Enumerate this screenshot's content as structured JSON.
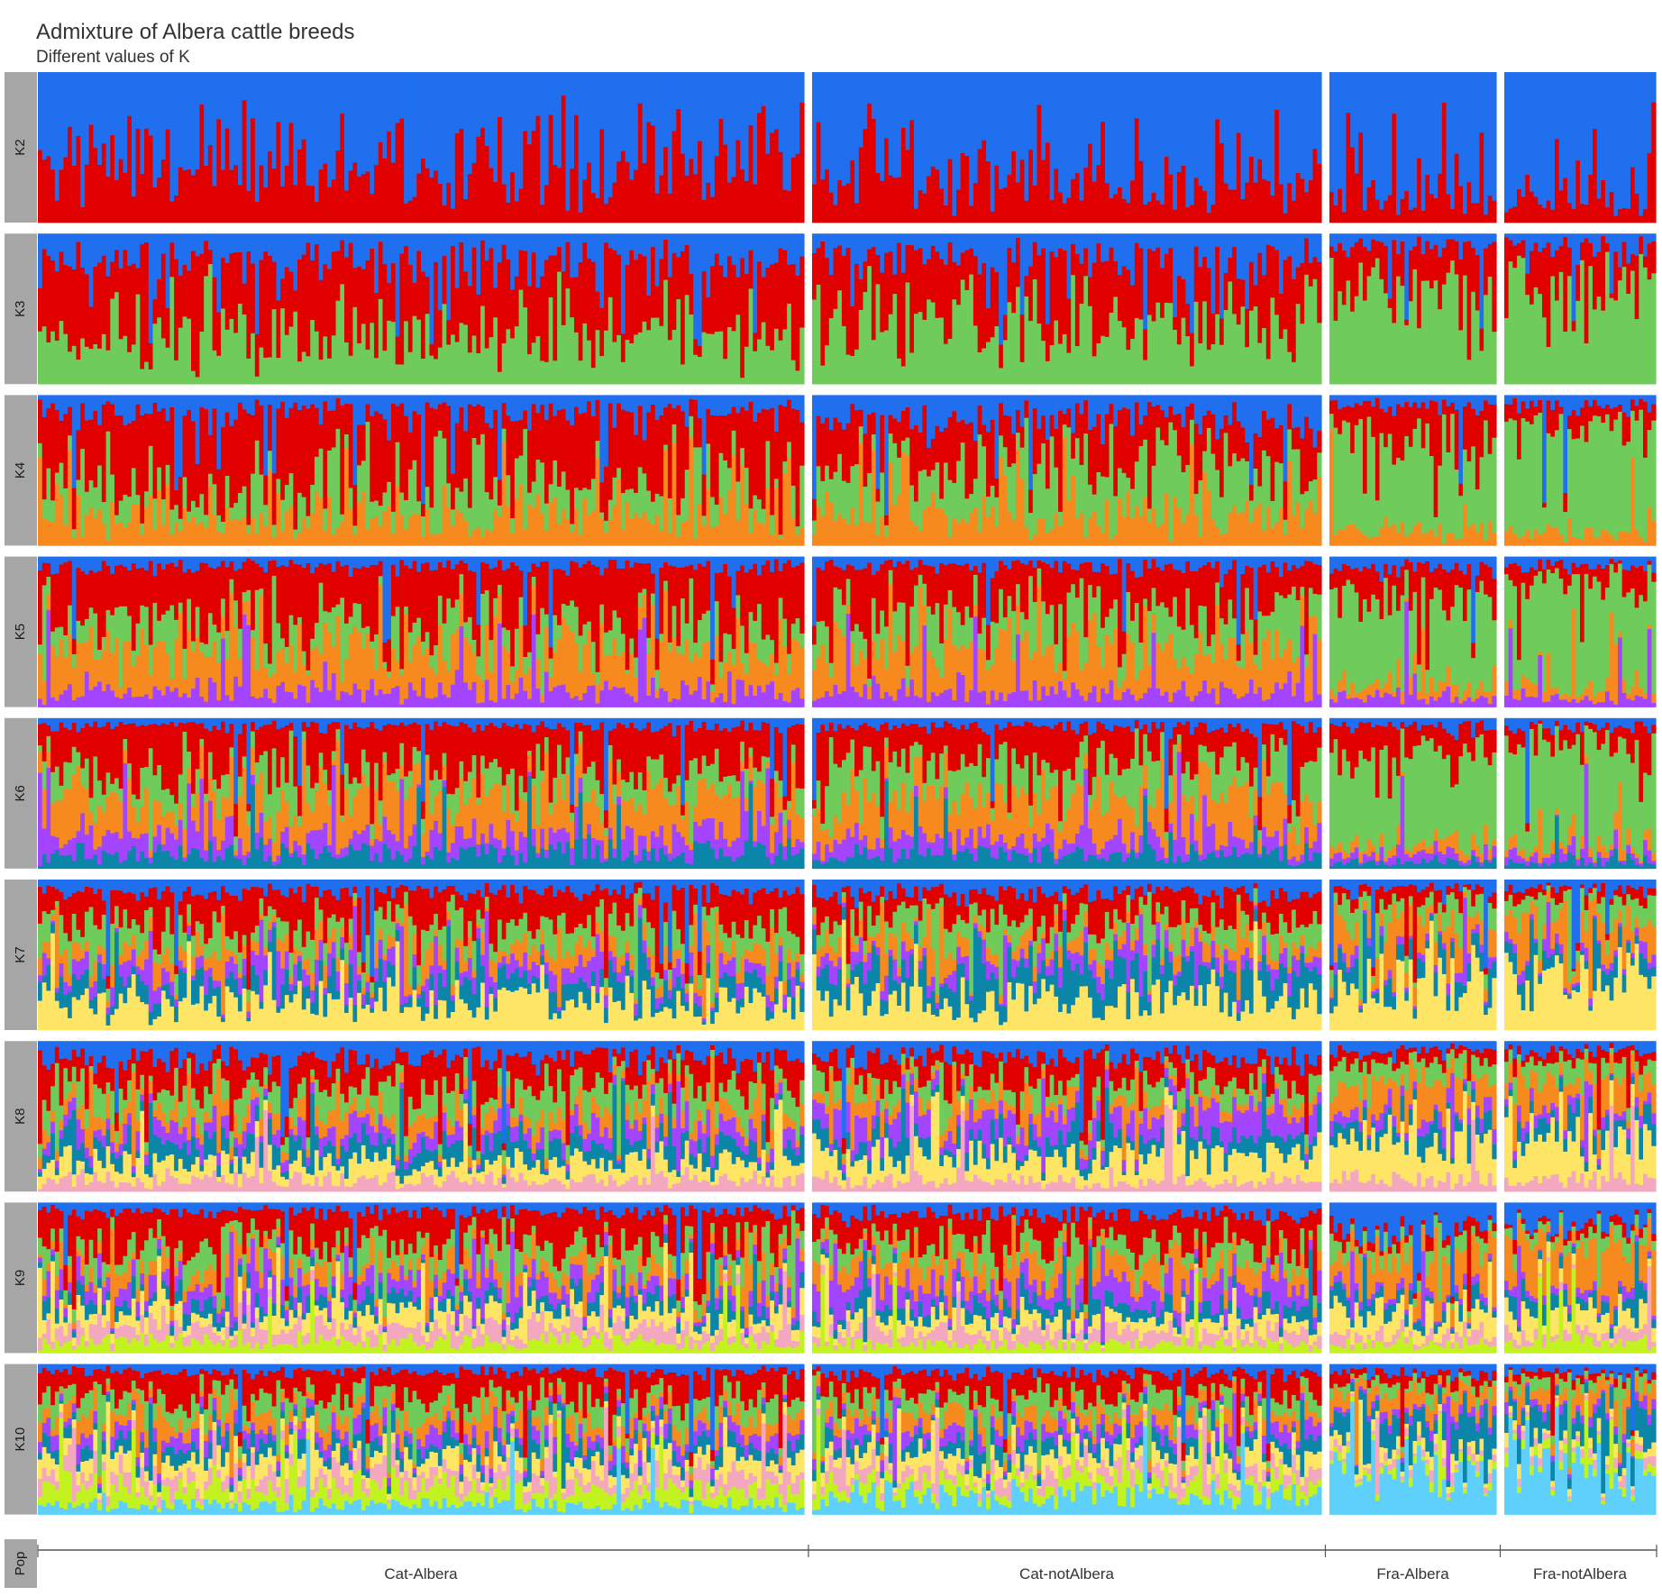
{
  "chart_data": {
    "type": "bar",
    "subtype": "stacked-100-admixture",
    "title": "Admixture of Albera cattle breeds",
    "subtitle": "Different values of K",
    "facet_rows": [
      "K2",
      "K3",
      "K4",
      "K5",
      "K6",
      "K7",
      "K8",
      "K9",
      "K10"
    ],
    "pop_strip_label": "Pop",
    "populations": [
      {
        "name": "Cat-Albera",
        "n_individuals": 180
      },
      {
        "name": "Cat-notAlbera",
        "n_individuals": 120
      },
      {
        "name": "Fra-Albera",
        "n_individuals": 40
      },
      {
        "name": "Fra-notAlbera",
        "n_individuals": 36
      }
    ],
    "ylim": [
      0,
      1
    ],
    "component_colors": [
      "#1f6fef",
      "#e10000",
      "#6fcb5a",
      "#f68a1e",
      "#a344ff",
      "#0b85a8",
      "#ffe566",
      "#f4a8c0",
      "#c3f221",
      "#5fd0fb"
    ],
    "component_color_names": [
      "blue",
      "red",
      "green",
      "orange",
      "purple",
      "teal",
      "yellow",
      "pink",
      "lime",
      "light-blue"
    ],
    "cluster_profiles": {
      "K2": {
        "Cat-Albera": [
          0.62,
          0.38
        ],
        "Cat-notAlbera": [
          0.72,
          0.28
        ],
        "Fra-Albera": [
          0.82,
          0.18
        ],
        "Fra-notAlbera": [
          0.88,
          0.12
        ]
      },
      "K3": {
        "Cat-Albera": [
          0.22,
          0.48,
          0.3
        ],
        "Cat-notAlbera": [
          0.18,
          0.4,
          0.42
        ],
        "Fra-Albera": [
          0.08,
          0.27,
          0.65
        ],
        "Fra-notAlbera": [
          0.08,
          0.17,
          0.75
        ]
      },
      "K4": {
        "Cat-Albera": [
          0.12,
          0.48,
          0.18,
          0.22
        ],
        "Cat-notAlbera": [
          0.18,
          0.32,
          0.28,
          0.22
        ],
        "Fra-Albera": [
          0.06,
          0.22,
          0.62,
          0.1
        ],
        "Fra-notAlbera": [
          0.06,
          0.14,
          0.72,
          0.08
        ]
      },
      "K5": {
        "Cat-Albera": [
          0.06,
          0.36,
          0.16,
          0.3,
          0.12
        ],
        "Cat-notAlbera": [
          0.06,
          0.28,
          0.24,
          0.32,
          0.1
        ],
        "Fra-Albera": [
          0.06,
          0.2,
          0.6,
          0.08,
          0.06
        ],
        "Fra-notAlbera": [
          0.06,
          0.12,
          0.7,
          0.06,
          0.06
        ]
      },
      "K6": {
        "Cat-Albera": [
          0.05,
          0.32,
          0.14,
          0.26,
          0.12,
          0.11
        ],
        "Cat-notAlbera": [
          0.05,
          0.24,
          0.22,
          0.3,
          0.1,
          0.09
        ],
        "Fra-Albera": [
          0.05,
          0.2,
          0.6,
          0.06,
          0.05,
          0.04
        ],
        "Fra-notAlbera": [
          0.05,
          0.1,
          0.72,
          0.05,
          0.04,
          0.04
        ]
      },
      "K7": {
        "Cat-Albera": [
          0.08,
          0.22,
          0.16,
          0.1,
          0.1,
          0.12,
          0.22
        ],
        "Cat-notAlbera": [
          0.1,
          0.18,
          0.14,
          0.08,
          0.08,
          0.2,
          0.22
        ],
        "Fra-Albera": [
          0.06,
          0.08,
          0.14,
          0.18,
          0.04,
          0.12,
          0.38
        ],
        "Fra-notAlbera": [
          0.06,
          0.06,
          0.12,
          0.2,
          0.04,
          0.1,
          0.42
        ]
      },
      "K8": {
        "Cat-Albera": [
          0.12,
          0.2,
          0.16,
          0.1,
          0.1,
          0.12,
          0.12,
          0.08
        ],
        "Cat-notAlbera": [
          0.12,
          0.16,
          0.12,
          0.08,
          0.16,
          0.1,
          0.18,
          0.08
        ],
        "Fra-Albera": [
          0.06,
          0.08,
          0.14,
          0.2,
          0.06,
          0.1,
          0.28,
          0.08
        ],
        "Fra-notAlbera": [
          0.06,
          0.06,
          0.12,
          0.22,
          0.06,
          0.1,
          0.3,
          0.08
        ]
      },
      "K9": {
        "Cat-Albera": [
          0.06,
          0.24,
          0.14,
          0.1,
          0.1,
          0.08,
          0.1,
          0.1,
          0.08
        ],
        "Cat-notAlbera": [
          0.08,
          0.2,
          0.12,
          0.14,
          0.14,
          0.08,
          0.1,
          0.08,
          0.06
        ],
        "Fra-Albera": [
          0.2,
          0.06,
          0.1,
          0.22,
          0.04,
          0.08,
          0.16,
          0.06,
          0.08
        ],
        "Fra-notAlbera": [
          0.18,
          0.04,
          0.08,
          0.28,
          0.04,
          0.08,
          0.16,
          0.06,
          0.08
        ]
      },
      "K10": {
        "Cat-Albera": [
          0.05,
          0.18,
          0.12,
          0.1,
          0.08,
          0.08,
          0.1,
          0.1,
          0.12,
          0.07
        ],
        "Cat-notAlbera": [
          0.06,
          0.16,
          0.1,
          0.1,
          0.08,
          0.08,
          0.1,
          0.08,
          0.1,
          0.14
        ],
        "Fra-Albera": [
          0.06,
          0.06,
          0.06,
          0.12,
          0.04,
          0.16,
          0.06,
          0.04,
          0.04,
          0.36
        ],
        "Fra-notAlbera": [
          0.06,
          0.04,
          0.06,
          0.12,
          0.04,
          0.18,
          0.06,
          0.04,
          0.04,
          0.36
        ]
      }
    },
    "xlabel": "",
    "ylabel": "",
    "grid": false,
    "legend": "none"
  }
}
